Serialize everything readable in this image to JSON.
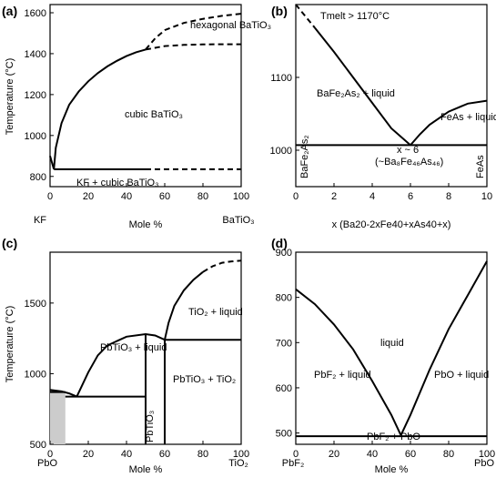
{
  "chart_data": [
    {
      "type": "line",
      "panel_label": "(a)",
      "ylabel": "Temperature (°C)",
      "xlabel": "Mole %",
      "x_end_labels": [
        "KF",
        "BaTiO₃"
      ],
      "xlim": [
        0,
        100
      ],
      "ylim": [
        750,
        1640
      ],
      "x_ticks": [
        0,
        20,
        40,
        60,
        80,
        100
      ],
      "y_ticks": [
        800,
        1000,
        1200,
        1400,
        1600
      ],
      "annotations": [
        "hexagonal BaTiO₃",
        "cubic BaTiO₃",
        "KF + cubic BaTiO₃"
      ],
      "series": [
        {
          "style": "solid",
          "x": [
            0,
            2
          ],
          "y": [
            900,
            835
          ]
        },
        {
          "style": "solid",
          "x": [
            2,
            3,
            6,
            10,
            15,
            20,
            25,
            30,
            35,
            40,
            45,
            50
          ],
          "y": [
            835,
            940,
            1060,
            1150,
            1215,
            1265,
            1305,
            1338,
            1365,
            1388,
            1407,
            1420
          ]
        },
        {
          "style": "dashed",
          "x": [
            50,
            55,
            60,
            70,
            80,
            90,
            100
          ],
          "y": [
            1420,
            1475,
            1515,
            1550,
            1570,
            1585,
            1595
          ]
        },
        {
          "style": "dashed",
          "x": [
            50,
            60,
            70,
            80,
            90,
            100
          ],
          "y": [
            1420,
            1437,
            1443,
            1445,
            1446,
            1446
          ]
        },
        {
          "style": "solid",
          "x": [
            2,
            50
          ],
          "y": [
            835,
            835
          ]
        },
        {
          "style": "dashed",
          "x": [
            50,
            100
          ],
          "y": [
            835,
            835
          ]
        }
      ]
    },
    {
      "type": "line",
      "panel_label": "(b)",
      "xlabel": "x (Ba20-2xFe40+xAs40+x)",
      "xlim": [
        0,
        10
      ],
      "ylim": [
        950,
        1200
      ],
      "x_ticks": [
        0,
        2,
        4,
        6,
        8,
        10
      ],
      "y_ticks": [
        1000,
        1100
      ],
      "annotations": [
        "Tmelt > 1170°C",
        "BaFe₂As₂ + liquid",
        "FeAs + liquid",
        "x ~ 6",
        "(~Ba₈Fe₄₆As₄₆)",
        "BaFe₂As₂",
        "FeAs"
      ],
      "series": [
        {
          "style": "dashed",
          "x": [
            0,
            1
          ],
          "y": [
            1200,
            1168
          ]
        },
        {
          "style": "solid",
          "x": [
            1,
            2,
            3,
            4,
            5,
            6
          ],
          "y": [
            1168,
            1135,
            1100,
            1065,
            1030,
            1007
          ]
        },
        {
          "style": "solid",
          "x": [
            6,
            6.5,
            7,
            8,
            9,
            10
          ],
          "y": [
            1007,
            1022,
            1035,
            1053,
            1064,
            1068
          ]
        },
        {
          "style": "solid",
          "x": [
            0,
            10
          ],
          "y": [
            1007,
            1007
          ]
        }
      ]
    },
    {
      "type": "line",
      "panel_label": "(c)",
      "ylabel": "Temperature (°C)",
      "xlabel": "Mole %",
      "x_end_labels": [
        "PbO",
        "TiO₂"
      ],
      "xlim": [
        0,
        100
      ],
      "ylim": [
        500,
        1860
      ],
      "x_ticks": [
        0,
        20,
        40,
        60,
        80,
        100
      ],
      "y_ticks": [
        500,
        1000,
        1500
      ],
      "annotations": [
        "TiO₂ + liquid",
        "PbTiO₃ + liquid",
        "PbTiO₃ + TiO₂",
        "PbTiO₃"
      ],
      "series": [
        {
          "style": "solid",
          "x": [
            0,
            6,
            10,
            14
          ],
          "y": [
            885,
            875,
            860,
            838
          ]
        },
        {
          "style": "solid",
          "x": [
            14,
            20,
            25,
            30,
            40,
            50,
            55,
            60
          ],
          "y": [
            838,
            1010,
            1130,
            1200,
            1262,
            1280,
            1270,
            1240
          ]
        },
        {
          "style": "solid",
          "x": [
            60,
            62,
            65,
            70,
            75,
            80
          ],
          "y": [
            1240,
            1360,
            1480,
            1590,
            1665,
            1720
          ]
        },
        {
          "style": "dashed",
          "x": [
            80,
            85,
            90,
            95,
            100
          ],
          "y": [
            1720,
            1760,
            1785,
            1795,
            1800
          ]
        },
        {
          "style": "solid",
          "x": [
            0,
            8
          ],
          "y": [
            870,
            870
          ]
        },
        {
          "style": "solid",
          "x": [
            8,
            50
          ],
          "y": [
            838,
            838
          ]
        },
        {
          "style": "solid",
          "x": [
            50,
            50
          ],
          "y": [
            500,
            1275
          ]
        },
        {
          "style": "solid",
          "x": [
            60,
            100
          ],
          "y": [
            1240,
            1240
          ]
        },
        {
          "style": "solid",
          "x": [
            60,
            60
          ],
          "y": [
            500,
            1240
          ]
        },
        {
          "style": "shaded",
          "x": [
            0,
            8
          ],
          "y": [
            500,
            870
          ]
        }
      ]
    },
    {
      "type": "line",
      "panel_label": "(d)",
      "xlabel": "Mole %",
      "x_end_labels": [
        "PbF₂",
        "PbO"
      ],
      "xlim": [
        0,
        100
      ],
      "ylim": [
        475,
        900
      ],
      "x_ticks": [
        0,
        20,
        40,
        60,
        80,
        100
      ],
      "y_ticks": [
        500,
        600,
        700,
        800,
        900
      ],
      "annotations": [
        "liquid",
        "PbF₂ + liquid",
        "PbO + liquid",
        "PbF₂ + PbO"
      ],
      "series": [
        {
          "style": "solid",
          "x": [
            0,
            10,
            20,
            30,
            40,
            50,
            55
          ],
          "y": [
            818,
            785,
            740,
            685,
            615,
            540,
            495
          ]
        },
        {
          "style": "solid",
          "x": [
            55,
            60,
            70,
            80,
            90,
            100
          ],
          "y": [
            495,
            540,
            640,
            730,
            805,
            880
          ]
        },
        {
          "style": "solid",
          "x": [
            0,
            100
          ],
          "y": [
            493,
            493
          ]
        }
      ]
    }
  ]
}
